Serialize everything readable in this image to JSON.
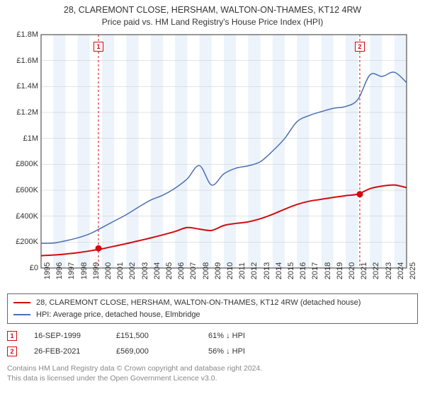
{
  "title_line1": "28, CLAREMONT CLOSE, HERSHAM, WALTON-ON-THAMES, KT12 4RW",
  "title_line2": "Price paid vs. HM Land Registry's House Price Index (HPI)",
  "chart": {
    "background_color": "#ffffff",
    "zebra_band_color": "#ecf3fb",
    "grid_color": "#c9c9c9",
    "axis_color": "#333333",
    "y": {
      "min": 0,
      "max": 1800000,
      "step": 200000,
      "labels": [
        "£0",
        "£200K",
        "£400K",
        "£600K",
        "£800K",
        "£1M",
        "£1.2M",
        "£1.4M",
        "£1.6M",
        "£1.8M"
      ]
    },
    "x": {
      "min": 1995,
      "max": 2025,
      "step": 1,
      "labels": [
        "1995",
        "1996",
        "1997",
        "1998",
        "1999",
        "2000",
        "2001",
        "2002",
        "2003",
        "2004",
        "2005",
        "2006",
        "2007",
        "2008",
        "2009",
        "2010",
        "2011",
        "2012",
        "2013",
        "2014",
        "2015",
        "2016",
        "2017",
        "2018",
        "2019",
        "2020",
        "2021",
        "2022",
        "2023",
        "2024",
        "2025"
      ]
    },
    "series": [
      {
        "name": "property",
        "color": "#d40a0e",
        "width": 2,
        "yearly": [
          95000,
          100000,
          108000,
          118000,
          132000,
          148000,
          168000,
          188000,
          210000,
          232000,
          256000,
          282000,
          312000,
          300000,
          290000,
          328000,
          344000,
          356000,
          380000,
          414000,
          454000,
          490000,
          515000,
          530000,
          545000,
          558000,
          570000,
          612000,
          632000,
          640000,
          620000
        ]
      },
      {
        "name": "hpi",
        "color": "#4a6fb3",
        "width": 1.5,
        "yearly": [
          190000,
          192000,
          210000,
          232000,
          264000,
          312000,
          362000,
          412000,
          470000,
          524000,
          562000,
          616000,
          688000,
          790000,
          640000,
          726000,
          770000,
          788000,
          820000,
          902000,
          1000000,
          1128000,
          1176000,
          1206000,
          1232000,
          1246000,
          1300000,
          1490000,
          1478000,
          1510000,
          1430000
        ]
      }
    ],
    "events": [
      {
        "id": "1",
        "year": 1999.71,
        "value": 151500,
        "line_color": "#d40a0e",
        "dot_color": "#d40a0e",
        "date": "16-SEP-1999",
        "price": "£151,500",
        "delta": "61% ↓ HPI"
      },
      {
        "id": "2",
        "year": 2021.16,
        "value": 569000,
        "line_color": "#d40a0e",
        "dot_color": "#d40a0e",
        "date": "26-FEB-2021",
        "price": "£569,000",
        "delta": "56% ↓ HPI"
      }
    ]
  },
  "legend": {
    "property": {
      "color": "#d40a0e",
      "label": "28, CLAREMONT CLOSE, HERSHAM, WALTON-ON-THAMES, KT12 4RW (detached house)"
    },
    "hpi": {
      "color": "#4a6fb3",
      "label": "HPI: Average price, detached house, Elmbridge"
    }
  },
  "attribution_line1": "Contains HM Land Registry data © Crown copyright and database right 2024.",
  "attribution_line2": "This data is licensed under the Open Government Licence v3.0."
}
